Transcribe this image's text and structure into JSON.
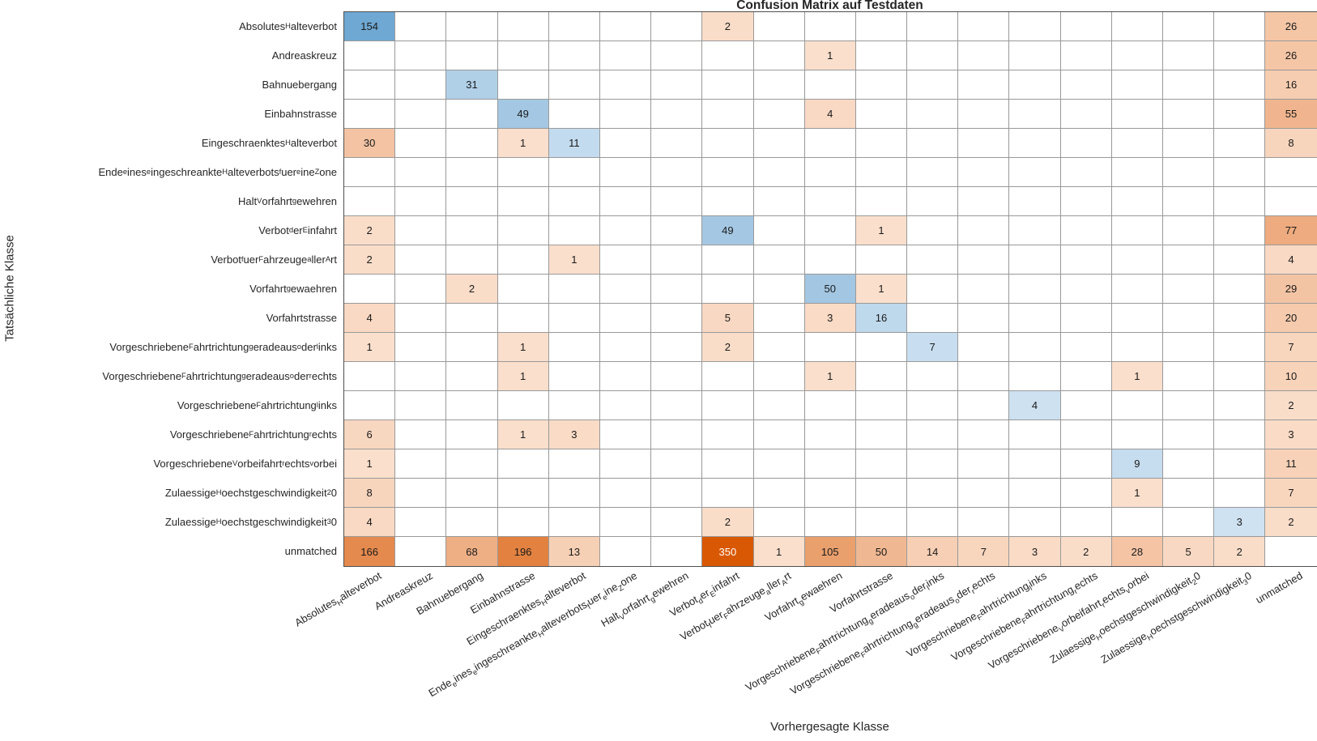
{
  "chart_data": {
    "type": "heatmap",
    "title": "Confusion Matrix auf Testdaten",
    "xlabel": "Vorhergesagte Klasse",
    "ylabel": "Tatsächliche Klasse",
    "legend": "none",
    "grid": "on",
    "classes": [
      "Absolutes_Halteverbot",
      "Andreaskreuz",
      "Bahnuebergang",
      "Einbahnstrasse",
      "Eingeschraenktes_Halteverbot",
      "Ende_eines_eingeschreankte_Halteverbots_fuer_eine_Zone",
      "Halt_Vorfahrt_gewehren",
      "Verbot_der_Einfahrt",
      "Verbot_fuer_Fahrzeuge_aller_Art",
      "Vorfahrt_gewaehren",
      "Vorfahrtstrasse",
      "Vorgeschriebene_Fahrtrichtung_geradeaus_oder_links",
      "Vorgeschriebene_Fahrtrichtung_geradeaus_oder_rechts",
      "Vorgeschriebene_Fahrtrichtung_links",
      "Vorgeschriebene_Fahrtrichtung_rechts",
      "Vorgeschriebene_Vorbeifahrt_rechts_vorbei",
      "Zulaessige_Hoechstgeschwindigkeit_20",
      "Zulaessige_Hoechstgeschwindigkeit_30",
      "unmatched"
    ],
    "matrix": [
      [
        154,
        0,
        0,
        0,
        0,
        0,
        0,
        2,
        0,
        0,
        0,
        0,
        0,
        0,
        0,
        0,
        0,
        0,
        26
      ],
      [
        0,
        0,
        0,
        0,
        0,
        0,
        0,
        0,
        0,
        1,
        0,
        0,
        0,
        0,
        0,
        0,
        0,
        0,
        26
      ],
      [
        0,
        0,
        31,
        0,
        0,
        0,
        0,
        0,
        0,
        0,
        0,
        0,
        0,
        0,
        0,
        0,
        0,
        0,
        16
      ],
      [
        0,
        0,
        0,
        49,
        0,
        0,
        0,
        0,
        0,
        4,
        0,
        0,
        0,
        0,
        0,
        0,
        0,
        0,
        55
      ],
      [
        30,
        0,
        0,
        1,
        11,
        0,
        0,
        0,
        0,
        0,
        0,
        0,
        0,
        0,
        0,
        0,
        0,
        0,
        8
      ],
      [
        0,
        0,
        0,
        0,
        0,
        0,
        0,
        0,
        0,
        0,
        0,
        0,
        0,
        0,
        0,
        0,
        0,
        0,
        0
      ],
      [
        0,
        0,
        0,
        0,
        0,
        0,
        0,
        0,
        0,
        0,
        0,
        0,
        0,
        0,
        0,
        0,
        0,
        0,
        0
      ],
      [
        2,
        0,
        0,
        0,
        0,
        0,
        0,
        49,
        0,
        0,
        1,
        0,
        0,
        0,
        0,
        0,
        0,
        0,
        77
      ],
      [
        2,
        0,
        0,
        0,
        1,
        0,
        0,
        0,
        0,
        0,
        0,
        0,
        0,
        0,
        0,
        0,
        0,
        0,
        4
      ],
      [
        0,
        0,
        2,
        0,
        0,
        0,
        0,
        0,
        0,
        50,
        1,
        0,
        0,
        0,
        0,
        0,
        0,
        0,
        29
      ],
      [
        4,
        0,
        0,
        0,
        0,
        0,
        0,
        5,
        0,
        3,
        16,
        0,
        0,
        0,
        0,
        0,
        0,
        0,
        20
      ],
      [
        1,
        0,
        0,
        1,
        0,
        0,
        0,
        2,
        0,
        0,
        0,
        7,
        0,
        0,
        0,
        0,
        0,
        0,
        7
      ],
      [
        0,
        0,
        0,
        1,
        0,
        0,
        0,
        0,
        0,
        1,
        0,
        0,
        0,
        0,
        0,
        1,
        0,
        0,
        10
      ],
      [
        0,
        0,
        0,
        0,
        0,
        0,
        0,
        0,
        0,
        0,
        0,
        0,
        0,
        4,
        0,
        0,
        0,
        0,
        2
      ],
      [
        6,
        0,
        0,
        1,
        3,
        0,
        0,
        0,
        0,
        0,
        0,
        0,
        0,
        0,
        0,
        0,
        0,
        0,
        3
      ],
      [
        1,
        0,
        0,
        0,
        0,
        0,
        0,
        0,
        0,
        0,
        0,
        0,
        0,
        0,
        0,
        9,
        0,
        0,
        11
      ],
      [
        8,
        0,
        0,
        0,
        0,
        0,
        0,
        0,
        0,
        0,
        0,
        0,
        0,
        0,
        0,
        1,
        0,
        0,
        7
      ],
      [
        4,
        0,
        0,
        0,
        0,
        0,
        0,
        2,
        0,
        0,
        0,
        0,
        0,
        0,
        0,
        0,
        0,
        3,
        2
      ],
      [
        166,
        0,
        68,
        196,
        13,
        0,
        0,
        350,
        1,
        105,
        50,
        14,
        7,
        3,
        2,
        28,
        5,
        2,
        0
      ]
    ],
    "colors": {
      "diagonal_low": "#d9e8f5",
      "diagonal_high": "#6fa8d2",
      "offdiagonal_low": "#fbe3d2",
      "offdiagonal_high": "#d95803",
      "value_text": "#1a1a1a",
      "value_text_inverse": "#ffffff",
      "grid_line": "#999999",
      "outer_border": "#4f4f4f",
      "background": "#ffffff"
    }
  }
}
